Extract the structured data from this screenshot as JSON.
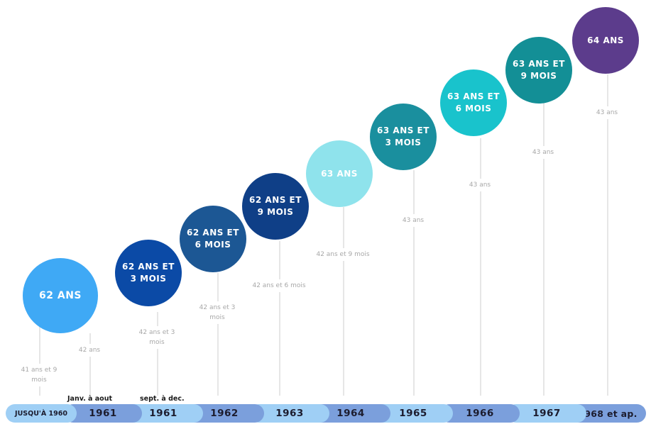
{
  "milestones": [
    {
      "age": "62 ANS",
      "contribution": "41 ans et 9\nmois",
      "year": "JUSQU'À 1960",
      "color": "#3fa9f5"
    },
    {
      "age": "62 ANS ET\n3 MOIS",
      "contribution": "42 ans",
      "year": "1961",
      "sublabel": "Janv. à aout",
      "color": "#0b4aa6"
    },
    {
      "age": "62 ANS ET\n6 MOIS",
      "contribution": "42 ans et 3\nmois",
      "year": "1961",
      "sublabel": "sept. à dec.",
      "color": "#1c5794"
    },
    {
      "age": "62 ANS ET\n9 MOIS",
      "contribution": "42 ans et 3\nmois",
      "year": "1962",
      "color": "#0f3f87"
    },
    {
      "age": "63 ANS",
      "contribution": "42 ans et 6 mois",
      "year": "1963",
      "color": "#8fe3ec"
    },
    {
      "age": "63 ANS ET\n3 MOIS",
      "contribution": "42 ans et  9 mois",
      "year": "1964",
      "color": "#1a8f9e"
    },
    {
      "age": "63 ANS ET\n6 MOIS",
      "contribution": "43 ans",
      "year": "1965",
      "color": "#19c3cc"
    },
    {
      "age": "63 ANS ET\n9 MOIS",
      "contribution": "43 ans",
      "year": "1966",
      "color": "#138f96"
    },
    {
      "age": "64 ANS",
      "contribution": "43 ans",
      "year": "1967",
      "color": "#5c3c8c"
    },
    {
      "contribution": "43 ans",
      "year": "1968 et ap."
    }
  ],
  "band_colors": [
    "#9fcff5",
    "#7b9fdc",
    "#9fcff5",
    "#7b9fdc",
    "#9fcff5",
    "#7b9fdc",
    "#9fcff5",
    "#7b9fdc",
    "#9fcff5",
    "#7b9fdc"
  ]
}
